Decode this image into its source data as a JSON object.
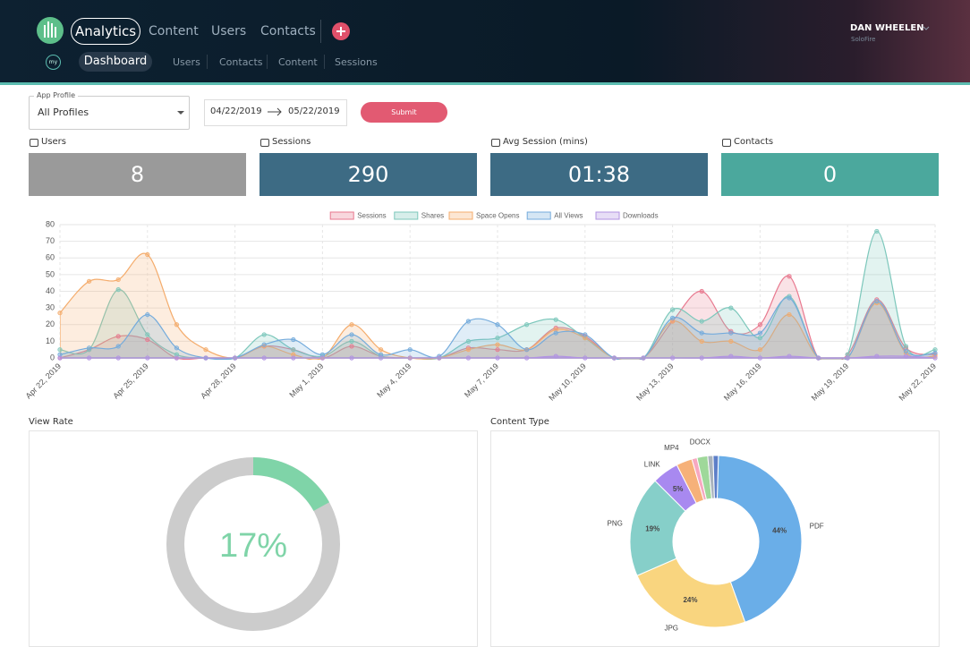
{
  "nav": {
    "primary": [
      "Analytics",
      "Content",
      "Users",
      "Contacts"
    ],
    "secondary": [
      "Dashboard",
      "Users",
      "Contacts",
      "Content",
      "Sessions"
    ],
    "logo_small": "my",
    "user": {
      "name": "DAN WHEELEN",
      "org": "SoloFire"
    }
  },
  "filters": {
    "profile_label": "App Profile",
    "profile": "All Profiles",
    "date_from": "04/22/2019",
    "date_to": "05/22/2019",
    "submit": "Submit"
  },
  "kpis": [
    {
      "label": "Users",
      "value": 8,
      "color": "#9a9a9a"
    },
    {
      "label": "Sessions",
      "value": 290,
      "color": "#3d6b84"
    },
    {
      "label": "Avg Session (mins)",
      "value": "01:38",
      "color": "#3d6b84"
    },
    {
      "label": "Contacts",
      "value": 0,
      "color": "#4ba89d"
    }
  ],
  "chart_data": [
    {
      "type": "line",
      "area": true,
      "legend": "top",
      "grid": true,
      "categories": [
        "Apr 22, 2019",
        null,
        null,
        "Apr 25, 2019",
        null,
        null,
        "Apr 28, 2019",
        null,
        null,
        "May 1, 2019",
        null,
        null,
        "May 4, 2019",
        null,
        null,
        "May 7, 2019",
        null,
        null,
        "May 10, 2019",
        null,
        null,
        "May 13, 2019",
        null,
        null,
        "May 16, 2019",
        null,
        null,
        "May 19, 2019",
        null,
        null,
        "May 22, 2019"
      ],
      "ylim": [
        0,
        80
      ],
      "yticks": [
        0,
        10,
        20,
        30,
        40,
        50,
        60,
        70,
        80
      ],
      "series": [
        {
          "name": "Sessions",
          "color": "#e8798f",
          "values": [
            0,
            5,
            13,
            11,
            0,
            0,
            0,
            7,
            5,
            0,
            7,
            1,
            0,
            0,
            6,
            5,
            5,
            18,
            13,
            0,
            0,
            22,
            40,
            16,
            20,
            49,
            0,
            2,
            35,
            6,
            2
          ]
        },
        {
          "name": "Shares",
          "color": "#7cc7bb",
          "values": [
            5,
            5,
            41,
            14,
            2,
            0,
            0,
            14,
            5,
            1,
            10,
            1,
            0,
            0,
            10,
            12,
            20,
            23,
            12,
            0,
            0,
            29,
            22,
            30,
            12,
            37,
            0,
            2,
            76,
            7,
            5
          ]
        },
        {
          "name": "Space Opens",
          "color": "#f4ac6c",
          "values": [
            27,
            46,
            47,
            62,
            20,
            5,
            0,
            7,
            2,
            0,
            20,
            5,
            0,
            0,
            5,
            8,
            5,
            17,
            12,
            0,
            0,
            22,
            10,
            10,
            5,
            26,
            0,
            0,
            33,
            3,
            1
          ]
        },
        {
          "name": "All Views",
          "color": "#74abdc",
          "values": [
            2,
            6,
            7,
            26,
            6,
            0,
            0,
            8,
            11,
            2,
            14,
            2,
            5,
            1,
            22,
            20,
            5,
            15,
            14,
            0,
            0,
            24,
            15,
            15,
            15,
            36,
            0,
            0,
            34,
            4,
            3
          ]
        },
        {
          "name": "Downloads",
          "color": "#b193e2",
          "values": [
            0,
            0,
            0,
            0,
            0,
            0,
            0,
            0,
            0,
            0,
            0,
            0,
            0,
            0,
            0,
            0,
            0,
            1,
            0,
            0,
            0,
            0,
            0,
            1,
            0,
            1,
            0,
            0,
            1,
            1,
            0
          ]
        }
      ]
    },
    {
      "type": "gauge",
      "title": "View Rate",
      "values": [
        17
      ],
      "value_labels": [
        "17%"
      ],
      "ylim": [
        0,
        100
      ],
      "color": "#7fd4a8",
      "track_color": "#cccccc"
    },
    {
      "type": "donut",
      "title": "Content Type",
      "categories": [
        "PDF",
        "JPG",
        "PNG",
        "LINK",
        "MP4",
        null,
        "DOCX",
        null,
        null
      ],
      "values": [
        44,
        24,
        19,
        5,
        3,
        1,
        2,
        1,
        1
      ],
      "value_labels": [
        "44%",
        "24%",
        "19%",
        "5%",
        null,
        null,
        null,
        null,
        null
      ],
      "colors": [
        "#6aaee8",
        "#f9d57f",
        "#86cfc9",
        "#a889f0",
        "#f6b179",
        "#f7a8c0",
        "#9fd89a",
        "#a9b3bd",
        "#5d7fc8"
      ]
    }
  ]
}
